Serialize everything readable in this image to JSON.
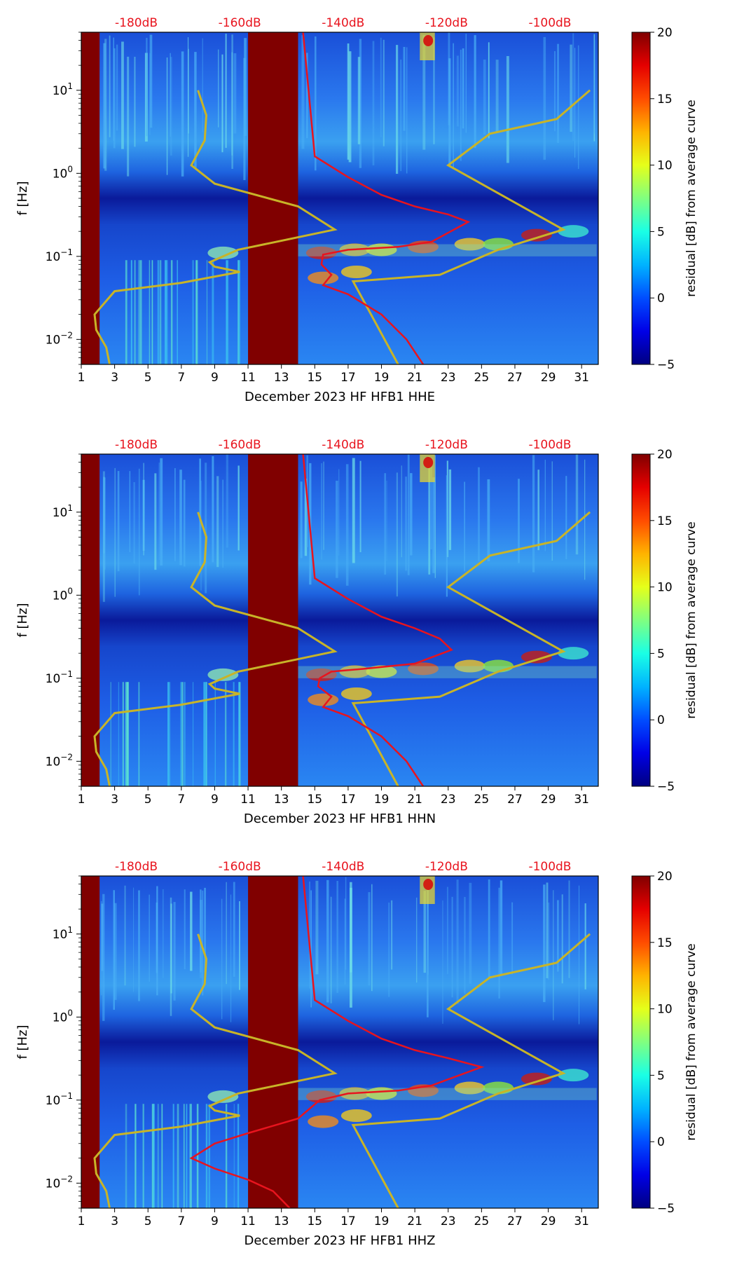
{
  "chart_data": [
    {
      "type": "heatmap",
      "title": "",
      "xlabel": "December 2023 HF HFB1  HHE",
      "ylabel": "f [Hz]",
      "x_ticks": [
        "1",
        "3",
        "5",
        "7",
        "9",
        "11",
        "13",
        "15",
        "17",
        "19",
        "21",
        "23",
        "25",
        "27",
        "29",
        "31"
      ],
      "xlim": [
        1,
        32
      ],
      "ylim": [
        0.005,
        50
      ],
      "y_scale": "log",
      "y_ticks": [
        {
          "exp": "−2",
          "v": 0.01
        },
        {
          "exp": "−1",
          "v": 0.1
        },
        {
          "exp": "0",
          "v": 1
        },
        {
          "exp": "1",
          "v": 10
        }
      ],
      "top_ticks": [
        "-180dB",
        "-160dB",
        "-140dB",
        "-120dB",
        "-100dB"
      ],
      "top_tick_x": [
        4.3,
        10.5,
        16.7,
        22.9,
        29.1
      ],
      "colorbar": {
        "label": "residual [dB] from average curve",
        "ticks": [
          "20",
          "15",
          "10",
          "5",
          "0",
          "−5"
        ],
        "range": [
          -5,
          20
        ]
      },
      "data_gaps": [
        [
          1,
          2.1
        ],
        [
          11,
          14
        ]
      ],
      "red_curve": {
        "name": "average PSD",
        "points": [
          [
            14.3,
            50
          ],
          [
            15,
            1.6
          ],
          [
            17,
            0.9
          ],
          [
            19,
            0.55
          ],
          [
            21,
            0.4
          ],
          [
            23,
            0.32
          ],
          [
            24.2,
            0.26
          ],
          [
            22,
            0.15
          ],
          [
            20,
            0.13
          ],
          [
            17,
            0.12
          ],
          [
            15.5,
            0.105
          ],
          [
            15.4,
            0.08
          ],
          [
            16,
            0.06
          ],
          [
            15.5,
            0.045
          ],
          [
            17,
            0.035
          ],
          [
            19,
            0.02
          ],
          [
            20.5,
            0.01
          ],
          [
            21.5,
            0.005
          ]
        ]
      },
      "yellow_curve": {
        "name": "model",
        "points": [
          [
            8,
            10
          ],
          [
            8.5,
            5
          ],
          [
            8.4,
            2.5
          ],
          [
            7.6,
            1.25
          ],
          [
            9,
            0.75
          ],
          [
            14,
            0.4
          ],
          [
            16.2,
            0.21
          ],
          [
            12,
            0.14
          ],
          [
            10.4,
            0.12
          ],
          [
            8.7,
            0.085
          ],
          [
            9,
            0.075
          ],
          [
            10.5,
            0.065
          ],
          [
            7,
            0.048
          ],
          [
            3,
            0.038
          ],
          [
            1.8,
            0.02
          ],
          [
            1.9,
            0.013
          ],
          [
            2.5,
            0.008
          ],
          [
            2.7,
            0.005
          ]
        ]
      },
      "yellow_curve_2": {
        "name": "model-right",
        "points": [
          [
            20,
            0.005
          ],
          [
            17.3,
            0.05
          ],
          [
            22.5,
            0.06
          ],
          [
            26,
            0.12
          ],
          [
            29.9,
            0.21
          ],
          [
            23,
            1.25
          ],
          [
            25.5,
            3
          ],
          [
            29.5,
            4.5
          ],
          [
            31.5,
            10
          ]
        ]
      }
    },
    {
      "type": "heatmap",
      "title": "",
      "xlabel": "December 2023 HF HFB1  HHN",
      "ylabel": "f [Hz]",
      "x_ticks": [
        "1",
        "3",
        "5",
        "7",
        "9",
        "11",
        "13",
        "15",
        "17",
        "19",
        "21",
        "23",
        "25",
        "27",
        "29",
        "31"
      ],
      "xlim": [
        1,
        32
      ],
      "ylim": [
        0.005,
        50
      ],
      "y_scale": "log",
      "y_ticks": [
        {
          "exp": "−2",
          "v": 0.01
        },
        {
          "exp": "−1",
          "v": 0.1
        },
        {
          "exp": "0",
          "v": 1
        },
        {
          "exp": "1",
          "v": 10
        }
      ],
      "top_ticks": [
        "-180dB",
        "-160dB",
        "-140dB",
        "-120dB",
        "-100dB"
      ],
      "top_tick_x": [
        4.3,
        10.5,
        16.7,
        22.9,
        29.1
      ],
      "colorbar": {
        "label": "residual [dB] from average curve",
        "ticks": [
          "20",
          "15",
          "10",
          "5",
          "0",
          "−5"
        ],
        "range": [
          -5,
          20
        ]
      },
      "data_gaps": [
        [
          1,
          2.1
        ],
        [
          11,
          14
        ]
      ],
      "red_curve": {
        "name": "average PSD",
        "points": [
          [
            14.3,
            50
          ],
          [
            15,
            1.6
          ],
          [
            17,
            0.9
          ],
          [
            19,
            0.55
          ],
          [
            21,
            0.4
          ],
          [
            22.5,
            0.3
          ],
          [
            23.2,
            0.22
          ],
          [
            21,
            0.15
          ],
          [
            18,
            0.13
          ],
          [
            16,
            0.12
          ],
          [
            15.3,
            0.1
          ],
          [
            15.2,
            0.08
          ],
          [
            16,
            0.06
          ],
          [
            15.5,
            0.045
          ],
          [
            17,
            0.035
          ],
          [
            19,
            0.02
          ],
          [
            20.5,
            0.01
          ],
          [
            21.5,
            0.005
          ]
        ]
      },
      "yellow_curve": {
        "name": "model",
        "points": [
          [
            8,
            10
          ],
          [
            8.5,
            5
          ],
          [
            8.4,
            2.5
          ],
          [
            7.6,
            1.25
          ],
          [
            9,
            0.75
          ],
          [
            14,
            0.4
          ],
          [
            16.2,
            0.21
          ],
          [
            12,
            0.14
          ],
          [
            10.4,
            0.12
          ],
          [
            8.7,
            0.085
          ],
          [
            9,
            0.075
          ],
          [
            10.5,
            0.065
          ],
          [
            7,
            0.048
          ],
          [
            3,
            0.038
          ],
          [
            1.8,
            0.02
          ],
          [
            1.9,
            0.013
          ],
          [
            2.5,
            0.008
          ],
          [
            2.7,
            0.005
          ]
        ]
      },
      "yellow_curve_2": {
        "name": "model-right",
        "points": [
          [
            20,
            0.005
          ],
          [
            17.3,
            0.05
          ],
          [
            22.5,
            0.06
          ],
          [
            26,
            0.12
          ],
          [
            29.9,
            0.21
          ],
          [
            23,
            1.25
          ],
          [
            25.5,
            3
          ],
          [
            29.5,
            4.5
          ],
          [
            31.5,
            10
          ]
        ]
      }
    },
    {
      "type": "heatmap",
      "title": "",
      "xlabel": "December 2023 HF HFB1  HHZ",
      "ylabel": "f [Hz]",
      "x_ticks": [
        "1",
        "3",
        "5",
        "7",
        "9",
        "11",
        "13",
        "15",
        "17",
        "19",
        "21",
        "23",
        "25",
        "27",
        "29",
        "31"
      ],
      "xlim": [
        1,
        32
      ],
      "ylim": [
        0.005,
        50
      ],
      "y_scale": "log",
      "y_ticks": [
        {
          "exp": "−2",
          "v": 0.01
        },
        {
          "exp": "−1",
          "v": 0.1
        },
        {
          "exp": "0",
          "v": 1
        },
        {
          "exp": "1",
          "v": 10
        }
      ],
      "top_ticks": [
        "-180dB",
        "-160dB",
        "-140dB",
        "-120dB",
        "-100dB"
      ],
      "top_tick_x": [
        4.3,
        10.5,
        16.7,
        22.9,
        29.1
      ],
      "colorbar": {
        "label": "residual [dB] from average curve",
        "ticks": [
          "20",
          "15",
          "10",
          "5",
          "0",
          "−5"
        ],
        "range": [
          -5,
          20
        ]
      },
      "data_gaps": [
        [
          1,
          2.1
        ],
        [
          11,
          14
        ]
      ],
      "red_curve": {
        "name": "average PSD",
        "points": [
          [
            14.3,
            50
          ],
          [
            15,
            1.6
          ],
          [
            17,
            0.9
          ],
          [
            19,
            0.55
          ],
          [
            21,
            0.4
          ],
          [
            23,
            0.32
          ],
          [
            25,
            0.25
          ],
          [
            22,
            0.15
          ],
          [
            20,
            0.13
          ],
          [
            17,
            0.12
          ],
          [
            15.3,
            0.1
          ],
          [
            14,
            0.06
          ],
          [
            11,
            0.04
          ],
          [
            9,
            0.03
          ],
          [
            7.6,
            0.02
          ],
          [
            9,
            0.015
          ],
          [
            11,
            0.011
          ],
          [
            12.5,
            0.008
          ],
          [
            13.5,
            0.005
          ]
        ]
      },
      "yellow_curve": {
        "name": "model",
        "points": [
          [
            8,
            10
          ],
          [
            8.5,
            5
          ],
          [
            8.4,
            2.5
          ],
          [
            7.6,
            1.25
          ],
          [
            9,
            0.75
          ],
          [
            14,
            0.4
          ],
          [
            16.2,
            0.21
          ],
          [
            12,
            0.14
          ],
          [
            10.4,
            0.12
          ],
          [
            8.7,
            0.085
          ],
          [
            9,
            0.075
          ],
          [
            10.5,
            0.065
          ],
          [
            7,
            0.048
          ],
          [
            3,
            0.038
          ],
          [
            1.8,
            0.02
          ],
          [
            1.9,
            0.013
          ],
          [
            2.5,
            0.008
          ],
          [
            2.7,
            0.005
          ]
        ]
      },
      "yellow_curve_2": {
        "name": "model-right",
        "points": [
          [
            20,
            0.005
          ],
          [
            17.3,
            0.05
          ],
          [
            22.5,
            0.06
          ],
          [
            26,
            0.12
          ],
          [
            29.9,
            0.21
          ],
          [
            23,
            1.25
          ],
          [
            25.5,
            3
          ],
          [
            29.5,
            4.5
          ],
          [
            31.5,
            10
          ]
        ]
      }
    }
  ],
  "colors": {
    "gap": "#800000",
    "red_curve": "#e8141e",
    "yellow_curve": "#c8b428",
    "top_tick_text": "#e8141e"
  }
}
